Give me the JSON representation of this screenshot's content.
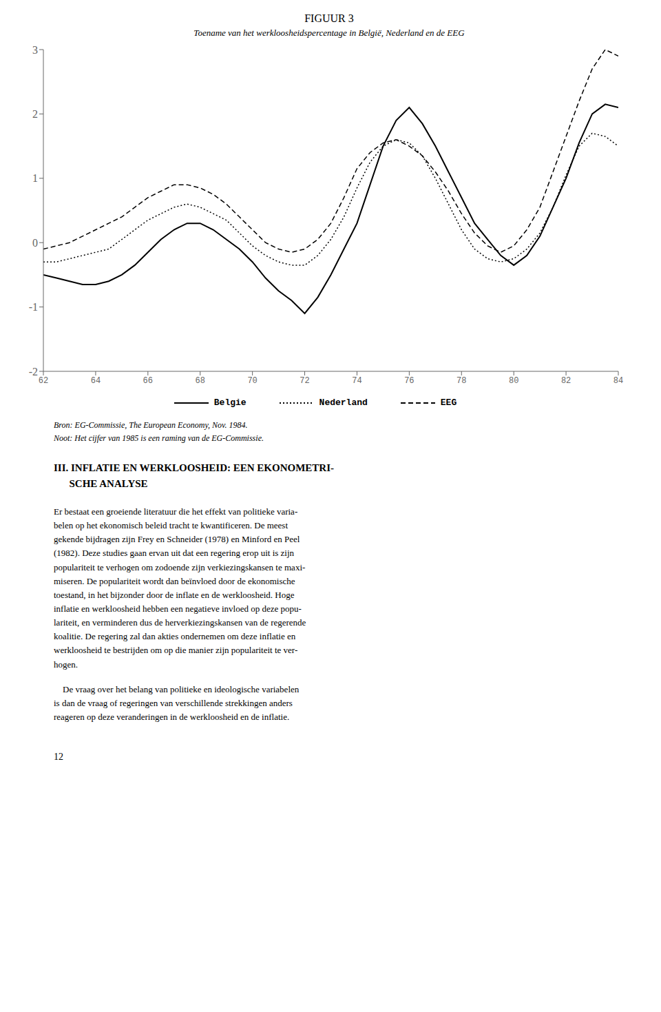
{
  "chart_data": {
    "type": "line",
    "title": "FIGUUR 3",
    "subtitle": "Toename van het werkloosheidspercentage in België, Nederland en de EEG",
    "x": [
      62,
      62.5,
      63,
      63.5,
      64,
      64.5,
      65,
      65.5,
      66,
      66.5,
      67,
      67.5,
      68,
      68.5,
      69,
      69.5,
      70,
      70.5,
      71,
      71.5,
      72,
      72.5,
      73,
      73.5,
      74,
      74.5,
      75,
      75.5,
      76,
      76.5,
      77,
      77.5,
      78,
      78.5,
      79,
      79.5,
      80,
      80.5,
      81,
      81.5,
      82,
      82.5,
      83,
      83.5,
      84
    ],
    "series": [
      {
        "name": "Belgie",
        "color": "black",
        "line_style": "solid",
        "values": [
          -0.5,
          -0.55,
          -0.6,
          -0.65,
          -0.65,
          -0.6,
          -0.5,
          -0.35,
          -0.15,
          0.05,
          0.2,
          0.3,
          0.3,
          0.2,
          0.05,
          -0.1,
          -0.3,
          -0.55,
          -0.75,
          -0.9,
          -1.1,
          -0.85,
          -0.5,
          -0.1,
          0.3,
          0.9,
          1.5,
          1.9,
          2.1,
          1.85,
          1.5,
          1.1,
          0.7,
          0.3,
          0.05,
          -0.2,
          -0.35,
          -0.2,
          0.1,
          0.55,
          1.0,
          1.55,
          2.0,
          2.15,
          2.1
        ]
      },
      {
        "name": "Nederland",
        "color": "black",
        "line_style": "dotted",
        "values": [
          -0.3,
          -0.3,
          -0.25,
          -0.2,
          -0.15,
          -0.1,
          0.05,
          0.2,
          0.35,
          0.45,
          0.55,
          0.6,
          0.55,
          0.45,
          0.35,
          0.15,
          -0.05,
          -0.2,
          -0.3,
          -0.35,
          -0.35,
          -0.2,
          0.05,
          0.4,
          0.85,
          1.25,
          1.5,
          1.6,
          1.55,
          1.35,
          1.0,
          0.6,
          0.2,
          -0.1,
          -0.25,
          -0.3,
          -0.25,
          -0.1,
          0.15,
          0.55,
          1.05,
          1.5,
          1.7,
          1.65,
          1.5
        ]
      },
      {
        "name": "EEG",
        "color": "black",
        "line_style": "dashed",
        "values": [
          -0.1,
          -0.05,
          0.0,
          0.1,
          0.2,
          0.3,
          0.4,
          0.55,
          0.7,
          0.8,
          0.9,
          0.9,
          0.85,
          0.75,
          0.6,
          0.4,
          0.2,
          0.0,
          -0.1,
          -0.15,
          -0.1,
          0.05,
          0.3,
          0.7,
          1.15,
          1.4,
          1.55,
          1.6,
          1.5,
          1.35,
          1.1,
          0.8,
          0.45,
          0.15,
          -0.05,
          -0.15,
          -0.05,
          0.2,
          0.55,
          1.1,
          1.65,
          2.2,
          2.7,
          3.0,
          2.9
        ]
      }
    ],
    "xlim": [
      62,
      84
    ],
    "ylim": [
      -2,
      3
    ],
    "xticks": [
      62,
      64,
      66,
      68,
      70,
      72,
      74,
      76,
      78,
      80,
      82,
      84
    ],
    "yticks": [
      -2,
      -1,
      0,
      1,
      2,
      3
    ],
    "grid": false,
    "legend": "bottom",
    "annotations": [
      "Bron: EG-Commissie, The European Economy, Nov. 1984.",
      "Noot: Het cijfer van 1985 is een raming van de EG-Commissie.",
      "III. INFLATIE EN WERKLOOSHEID: EEN EKONOMETRI-\n      SCHE ANALYSE",
      "Er bestaat een groeiende literatuur die het effekt van politieke varia-\nbelen op het ekonomisch beleid tracht te kwantificeren. De meest\ngekende bijdragen zijn Frey en Schneider (1978) en Minford en Peel\n(1982). Deze studies gaan ervan uit dat een regering erop uit is zijn\npopulariteit te verhogen om zodoende zijn verkiezingskansen te maxi-\nmiseren. De populariteit wordt dan beïnvloed door de ekonomische\ntoestand, in het bijzonder door de inflate en de werkloosheid. Hoge\ninflatie en werkloosheid hebben een negatieve invloed op deze popu-\nlariteit, en verminderen dus de herverkiezingskansen van de regerende\nkoalitie. De regering zal dan akties ondernemen om deze inflatie en\nwerkloosheid te bestrijden om op die manier zijn populariteit te ver-\nhogen.",
      "    De vraag over het belang van politieke en ideologische variabelen\nis dan de vraag of regeringen van verschillende strekkingen anders\nreageren op deze veranderingen in de werkloosheid en de inflatie.",
      "12"
    ]
  }
}
